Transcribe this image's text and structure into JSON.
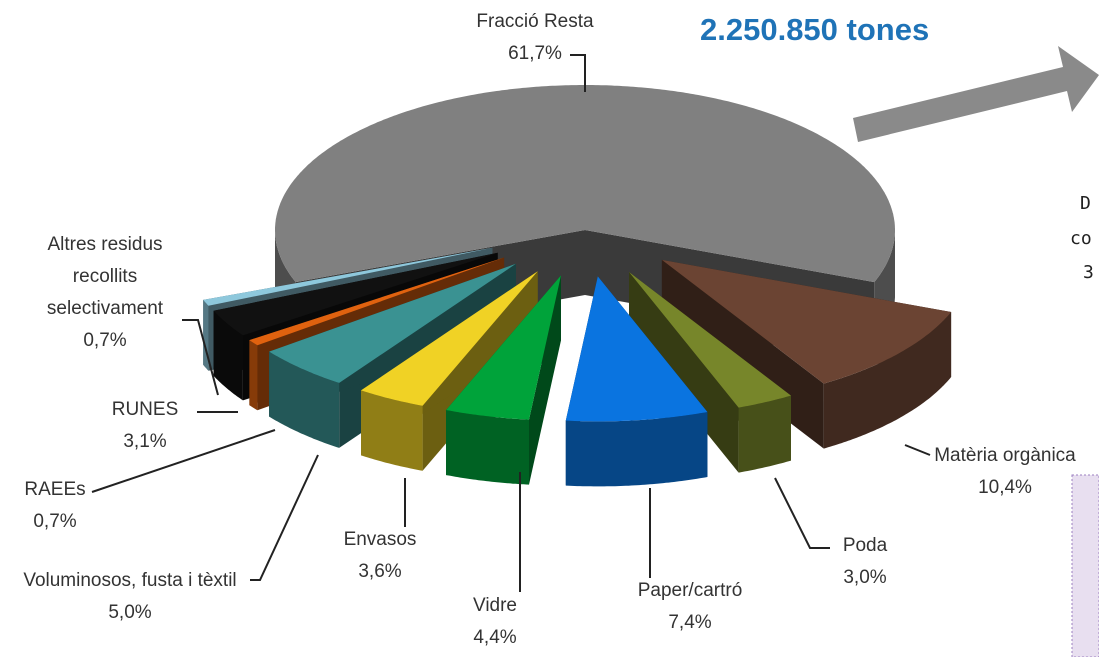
{
  "chart_data": {
    "type": "pie3d",
    "title": "2.250.850 tones",
    "categories": [
      "Fracció Resta",
      "Matèria orgànica",
      "Poda",
      "Paper/cartró",
      "Vidre",
      "Envasos",
      "Voluminosos, fusta i tèxtil",
      "RAEEs",
      "RUNES",
      "Altres residus recollits selectivament"
    ],
    "values": [
      61.7,
      10.4,
      3.0,
      7.4,
      4.4,
      3.6,
      5.0,
      0.7,
      3.1,
      0.7
    ],
    "value_labels": [
      "61,7%",
      "10,4%",
      "3,0%",
      "7,4%",
      "4,4%",
      "3,6%",
      "5,0%",
      "0,7%",
      "3,1%",
      "0,7%"
    ],
    "colors": [
      "#808080",
      "#6b4433",
      "#77862a",
      "#0a74e0",
      "#00a33a",
      "#f0d225",
      "#3a9292",
      "#e0620f",
      "#111111",
      "#8ec8dc"
    ],
    "annotations": [
      "D",
      "co",
      "3"
    ]
  }
}
